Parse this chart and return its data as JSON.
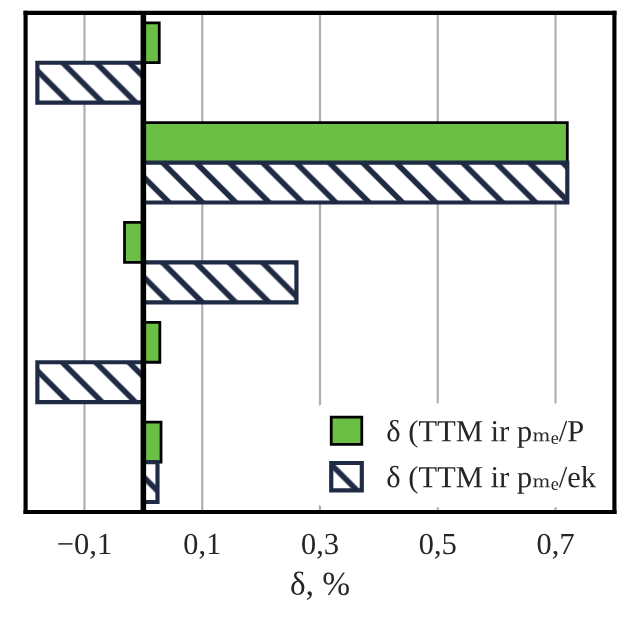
{
  "chart_data": {
    "type": "bar",
    "orientation": "horizontal",
    "xlabel": "δ, %",
    "categories": [
      null,
      null,
      null,
      null,
      null
    ],
    "series": [
      {
        "name": "δ (TTM ir pₘₑ/P",
        "color": "#6cbf45",
        "values": [
          0.027,
          0.72,
          -0.032,
          0.028,
          0.03
        ]
      },
      {
        "name": "δ (TTM ir pₘₑ/ek",
        "color": "#1f2a44",
        "values": [
          -0.18,
          0.72,
          0.26,
          -0.18,
          0.024
        ]
      }
    ],
    "xlim": [
      -0.2,
      0.8
    ],
    "xticks": [
      {
        "value": -0.1,
        "label": "−0,1"
      },
      {
        "value": 0.1,
        "label": "0,1"
      },
      {
        "value": 0.3,
        "label": "0,3"
      },
      {
        "value": 0.5,
        "label": "0,5"
      },
      {
        "value": 0.7,
        "label": "0,7"
      }
    ],
    "grid": "x",
    "legend": "bottom right"
  }
}
